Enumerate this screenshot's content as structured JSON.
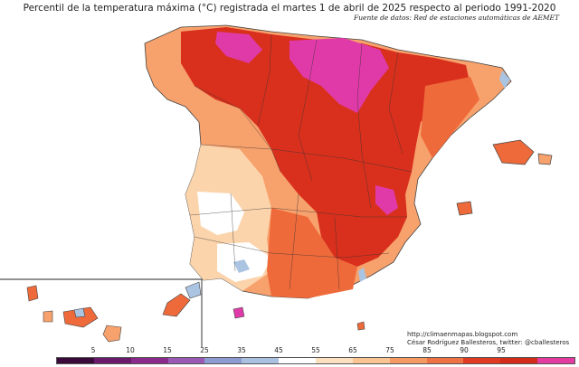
{
  "title": "Percentil de la temperatura máxima (°C) registrada el martes 1 de abril de 2025 respecto al periodo 1991-2020",
  "source": "Fuente de datos: Red de estaciones automáticas de AEMET",
  "credits": {
    "url": "http://climaenmapas.blogspot.com",
    "author": "César Rodríguez Ballesteros, twitter: @cballesteros"
  },
  "legend": {
    "ticks": [
      "5",
      "10",
      "15",
      "25",
      "35",
      "45",
      "55",
      "65",
      "75",
      "85",
      "90",
      "95"
    ],
    "colors": [
      "#3a0a3a",
      "#6b1a6b",
      "#8a2a8a",
      "#9b59b6",
      "#8e9bd0",
      "#a9c0e0",
      "#ffffff",
      "#fde0c0",
      "#fbc493",
      "#f59a62",
      "#ef7245",
      "#e03a22",
      "#d42a1a",
      "#e43ba0"
    ]
  },
  "map": {
    "regions": [
      "peninsula",
      "balearic-islands",
      "canary-islands",
      "ceuta",
      "melilla"
    ],
    "percentile_colors": {
      "very_high": "#e03aa8",
      "high": "#d9301d",
      "med_high": "#ef6a3a",
      "medium": "#f7a16c",
      "low": "#fbd4ac",
      "near_normal": "#ffffff",
      "cool": "#aac4e2"
    }
  }
}
